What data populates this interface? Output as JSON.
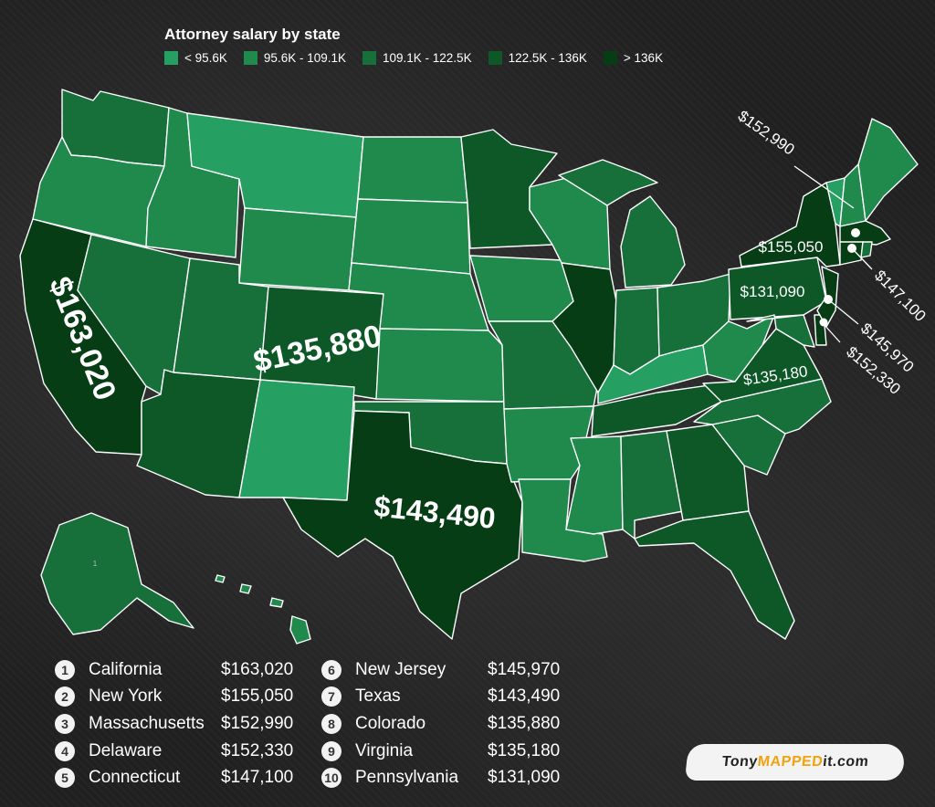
{
  "legend": {
    "title": "Attorney salary by state",
    "items": [
      {
        "label": "< 95.6K",
        "color": "#26a062"
      },
      {
        "label": "95.6K - 109.1K",
        "color": "#1f8a4c"
      },
      {
        "label": "109.1K - 122.5K",
        "color": "#17703a"
      },
      {
        "label": "122.5K - 136K",
        "color": "#0e5828"
      },
      {
        "label": "> 136K",
        "color": "#063d15"
      }
    ]
  },
  "map_labels": {
    "california": "$163,020",
    "colorado": "$135,880",
    "texas": "$143,490",
    "new_york": "$155,050",
    "pennsylvania": "$131,090",
    "virginia": "$135,180",
    "massachusetts": "$152,990",
    "connecticut": "$147,100",
    "new_jersey": "$145,970",
    "delaware": "$152,330",
    "alaska_marker": "1"
  },
  "ranking": [
    {
      "rank": "1",
      "state": "California",
      "salary": "$163,020"
    },
    {
      "rank": "2",
      "state": "New York",
      "salary": "$155,050"
    },
    {
      "rank": "3",
      "state": "Massachusetts",
      "salary": "$152,990"
    },
    {
      "rank": "4",
      "state": "Delaware",
      "salary": "$152,330"
    },
    {
      "rank": "5",
      "state": "Connecticut",
      "salary": "$147,100"
    },
    {
      "rank": "6",
      "state": "New Jersey",
      "salary": "$145,970"
    },
    {
      "rank": "7",
      "state": "Texas",
      "salary": "$143,490"
    },
    {
      "rank": "8",
      "state": "Colorado",
      "salary": "$135,880"
    },
    {
      "rank": "9",
      "state": "Virginia",
      "salary": "$135,180"
    },
    {
      "rank": "10",
      "state": "Pennsylvania",
      "salary": "$131,090"
    }
  ],
  "brand": {
    "prefix": "Tony",
    "highlight": "MAPPED",
    "suffix": "it.com"
  }
}
